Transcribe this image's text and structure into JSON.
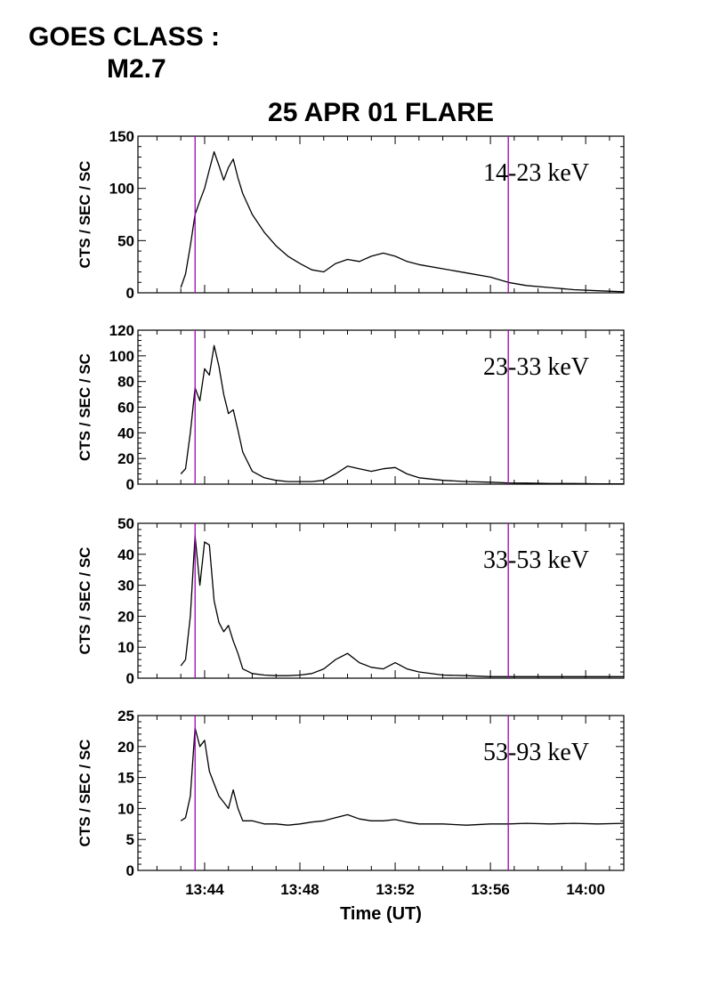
{
  "header": {
    "goes_label": "GOES CLASS :",
    "goes_class": "M2.7"
  },
  "chart_data": {
    "type": "line",
    "title": "25 APR 01 FLARE",
    "xlabel": "Time (UT)",
    "xlim": [
      "13:41:12",
      "14:01:36"
    ],
    "xticks": [
      "13:44",
      "13:48",
      "13:52",
      "13:56",
      "14:00"
    ],
    "vertical_markers": [
      "13:43:36",
      "13:56:45"
    ],
    "marker_color": "#a000b0",
    "line_color": "#000000",
    "panels": [
      {
        "band": "14-23 keV",
        "ylabel": "CTS / SEC / SC",
        "ylim": [
          0,
          150
        ],
        "yticks": [
          "0",
          "50",
          "100",
          "150"
        ],
        "x": [
          "13:43:00",
          "13:43:12",
          "13:43:24",
          "13:43:36",
          "13:43:48",
          "13:44:00",
          "13:44:12",
          "13:44:24",
          "13:44:36",
          "13:44:48",
          "13:45:00",
          "13:45:12",
          "13:45:24",
          "13:45:36",
          "13:46:00",
          "13:46:30",
          "13:47:00",
          "13:47:30",
          "13:48:00",
          "13:48:30",
          "13:49:00",
          "13:49:30",
          "13:50:00",
          "13:50:30",
          "13:51:00",
          "13:51:30",
          "13:52:00",
          "13:52:30",
          "13:53:00",
          "13:54:00",
          "13:55:00",
          "13:56:00",
          "13:56:45",
          "13:57:30",
          "13:58:30",
          "13:59:30",
          "14:00:30",
          "14:01:36"
        ],
        "y": [
          5,
          18,
          45,
          75,
          88,
          100,
          118,
          135,
          122,
          108,
          120,
          128,
          110,
          95,
          75,
          58,
          45,
          35,
          28,
          22,
          20,
          28,
          32,
          30,
          35,
          38,
          35,
          30,
          27,
          23,
          19,
          15,
          10,
          7,
          5,
          3,
          2,
          1
        ]
      },
      {
        "band": "23-33 keV",
        "ylabel": "CTS / SEC / SC",
        "ylim": [
          0,
          120
        ],
        "yticks": [
          "0",
          "20",
          "40",
          "60",
          "80",
          "100",
          "120"
        ],
        "x": [
          "13:43:00",
          "13:43:12",
          "13:43:24",
          "13:43:36",
          "13:43:48",
          "13:44:00",
          "13:44:12",
          "13:44:24",
          "13:44:36",
          "13:44:48",
          "13:45:00",
          "13:45:12",
          "13:45:24",
          "13:45:36",
          "13:46:00",
          "13:46:30",
          "13:47:00",
          "13:47:30",
          "13:48:00",
          "13:48:30",
          "13:49:00",
          "13:49:30",
          "13:50:00",
          "13:50:30",
          "13:51:00",
          "13:51:30",
          "13:52:00",
          "13:52:30",
          "13:53:00",
          "13:54:00",
          "13:55:00",
          "13:56:00",
          "13:56:45",
          "13:57:30",
          "13:58:30",
          "13:59:30",
          "14:00:30",
          "14:01:36"
        ],
        "y": [
          8,
          12,
          40,
          75,
          65,
          90,
          85,
          108,
          92,
          70,
          55,
          58,
          42,
          25,
          10,
          5,
          3,
          2,
          2,
          2,
          3,
          8,
          14,
          12,
          10,
          12,
          13,
          8,
          5,
          3,
          2,
          1.5,
          1,
          0.8,
          0.5,
          0.5,
          0.3,
          0.3
        ]
      },
      {
        "band": "33-53 keV",
        "ylabel": "CTS / SEC / SC",
        "ylim": [
          0,
          50
        ],
        "yticks": [
          "0",
          "10",
          "20",
          "30",
          "40",
          "50"
        ],
        "x": [
          "13:43:00",
          "13:43:12",
          "13:43:24",
          "13:43:36",
          "13:43:48",
          "13:44:00",
          "13:44:12",
          "13:44:24",
          "13:44:36",
          "13:44:48",
          "13:45:00",
          "13:45:12",
          "13:45:24",
          "13:45:36",
          "13:46:00",
          "13:46:30",
          "13:47:00",
          "13:47:30",
          "13:48:00",
          "13:48:30",
          "13:49:00",
          "13:49:30",
          "13:50:00",
          "13:50:30",
          "13:51:00",
          "13:51:30",
          "13:52:00",
          "13:52:30",
          "13:53:00",
          "13:54:00",
          "13:55:00",
          "13:56:00",
          "13:56:45",
          "13:57:30",
          "13:58:30",
          "13:59:30",
          "14:00:30",
          "14:01:36"
        ],
        "y": [
          4,
          6,
          20,
          46,
          30,
          44,
          43,
          25,
          18,
          15,
          17,
          12,
          8,
          3,
          1.5,
          1,
          0.8,
          0.8,
          1,
          1.5,
          3,
          6,
          8,
          5,
          3.5,
          3,
          5,
          3,
          2,
          1,
          0.8,
          0.5,
          0.5,
          0.5,
          0.5,
          0.5,
          0.5,
          0.5
        ]
      },
      {
        "band": "53-93 keV",
        "ylabel": "CTS / SEC / SC",
        "ylim": [
          0,
          25
        ],
        "yticks": [
          "0",
          "5",
          "10",
          "15",
          "20",
          "25"
        ],
        "x": [
          "13:43:00",
          "13:43:12",
          "13:43:24",
          "13:43:36",
          "13:43:48",
          "13:44:00",
          "13:44:12",
          "13:44:24",
          "13:44:36",
          "13:44:48",
          "13:45:00",
          "13:45:12",
          "13:45:24",
          "13:45:36",
          "13:46:00",
          "13:46:30",
          "13:47:00",
          "13:47:30",
          "13:48:00",
          "13:48:30",
          "13:49:00",
          "13:49:30",
          "13:50:00",
          "13:50:30",
          "13:51:00",
          "13:51:30",
          "13:52:00",
          "13:52:30",
          "13:53:00",
          "13:54:00",
          "13:55:00",
          "13:56:00",
          "13:56:45",
          "13:57:30",
          "13:58:30",
          "13:59:30",
          "14:00:30",
          "14:01:36"
        ],
        "y": [
          8,
          8.5,
          12,
          23,
          20,
          21,
          16,
          14,
          12,
          11,
          10,
          13,
          10,
          8,
          8,
          7.5,
          7.5,
          7.3,
          7.5,
          7.8,
          8,
          8.5,
          9,
          8.3,
          8,
          8,
          8.2,
          7.8,
          7.5,
          7.5,
          7.3,
          7.5,
          7.5,
          7.6,
          7.5,
          7.6,
          7.5,
          7.6
        ]
      }
    ]
  }
}
